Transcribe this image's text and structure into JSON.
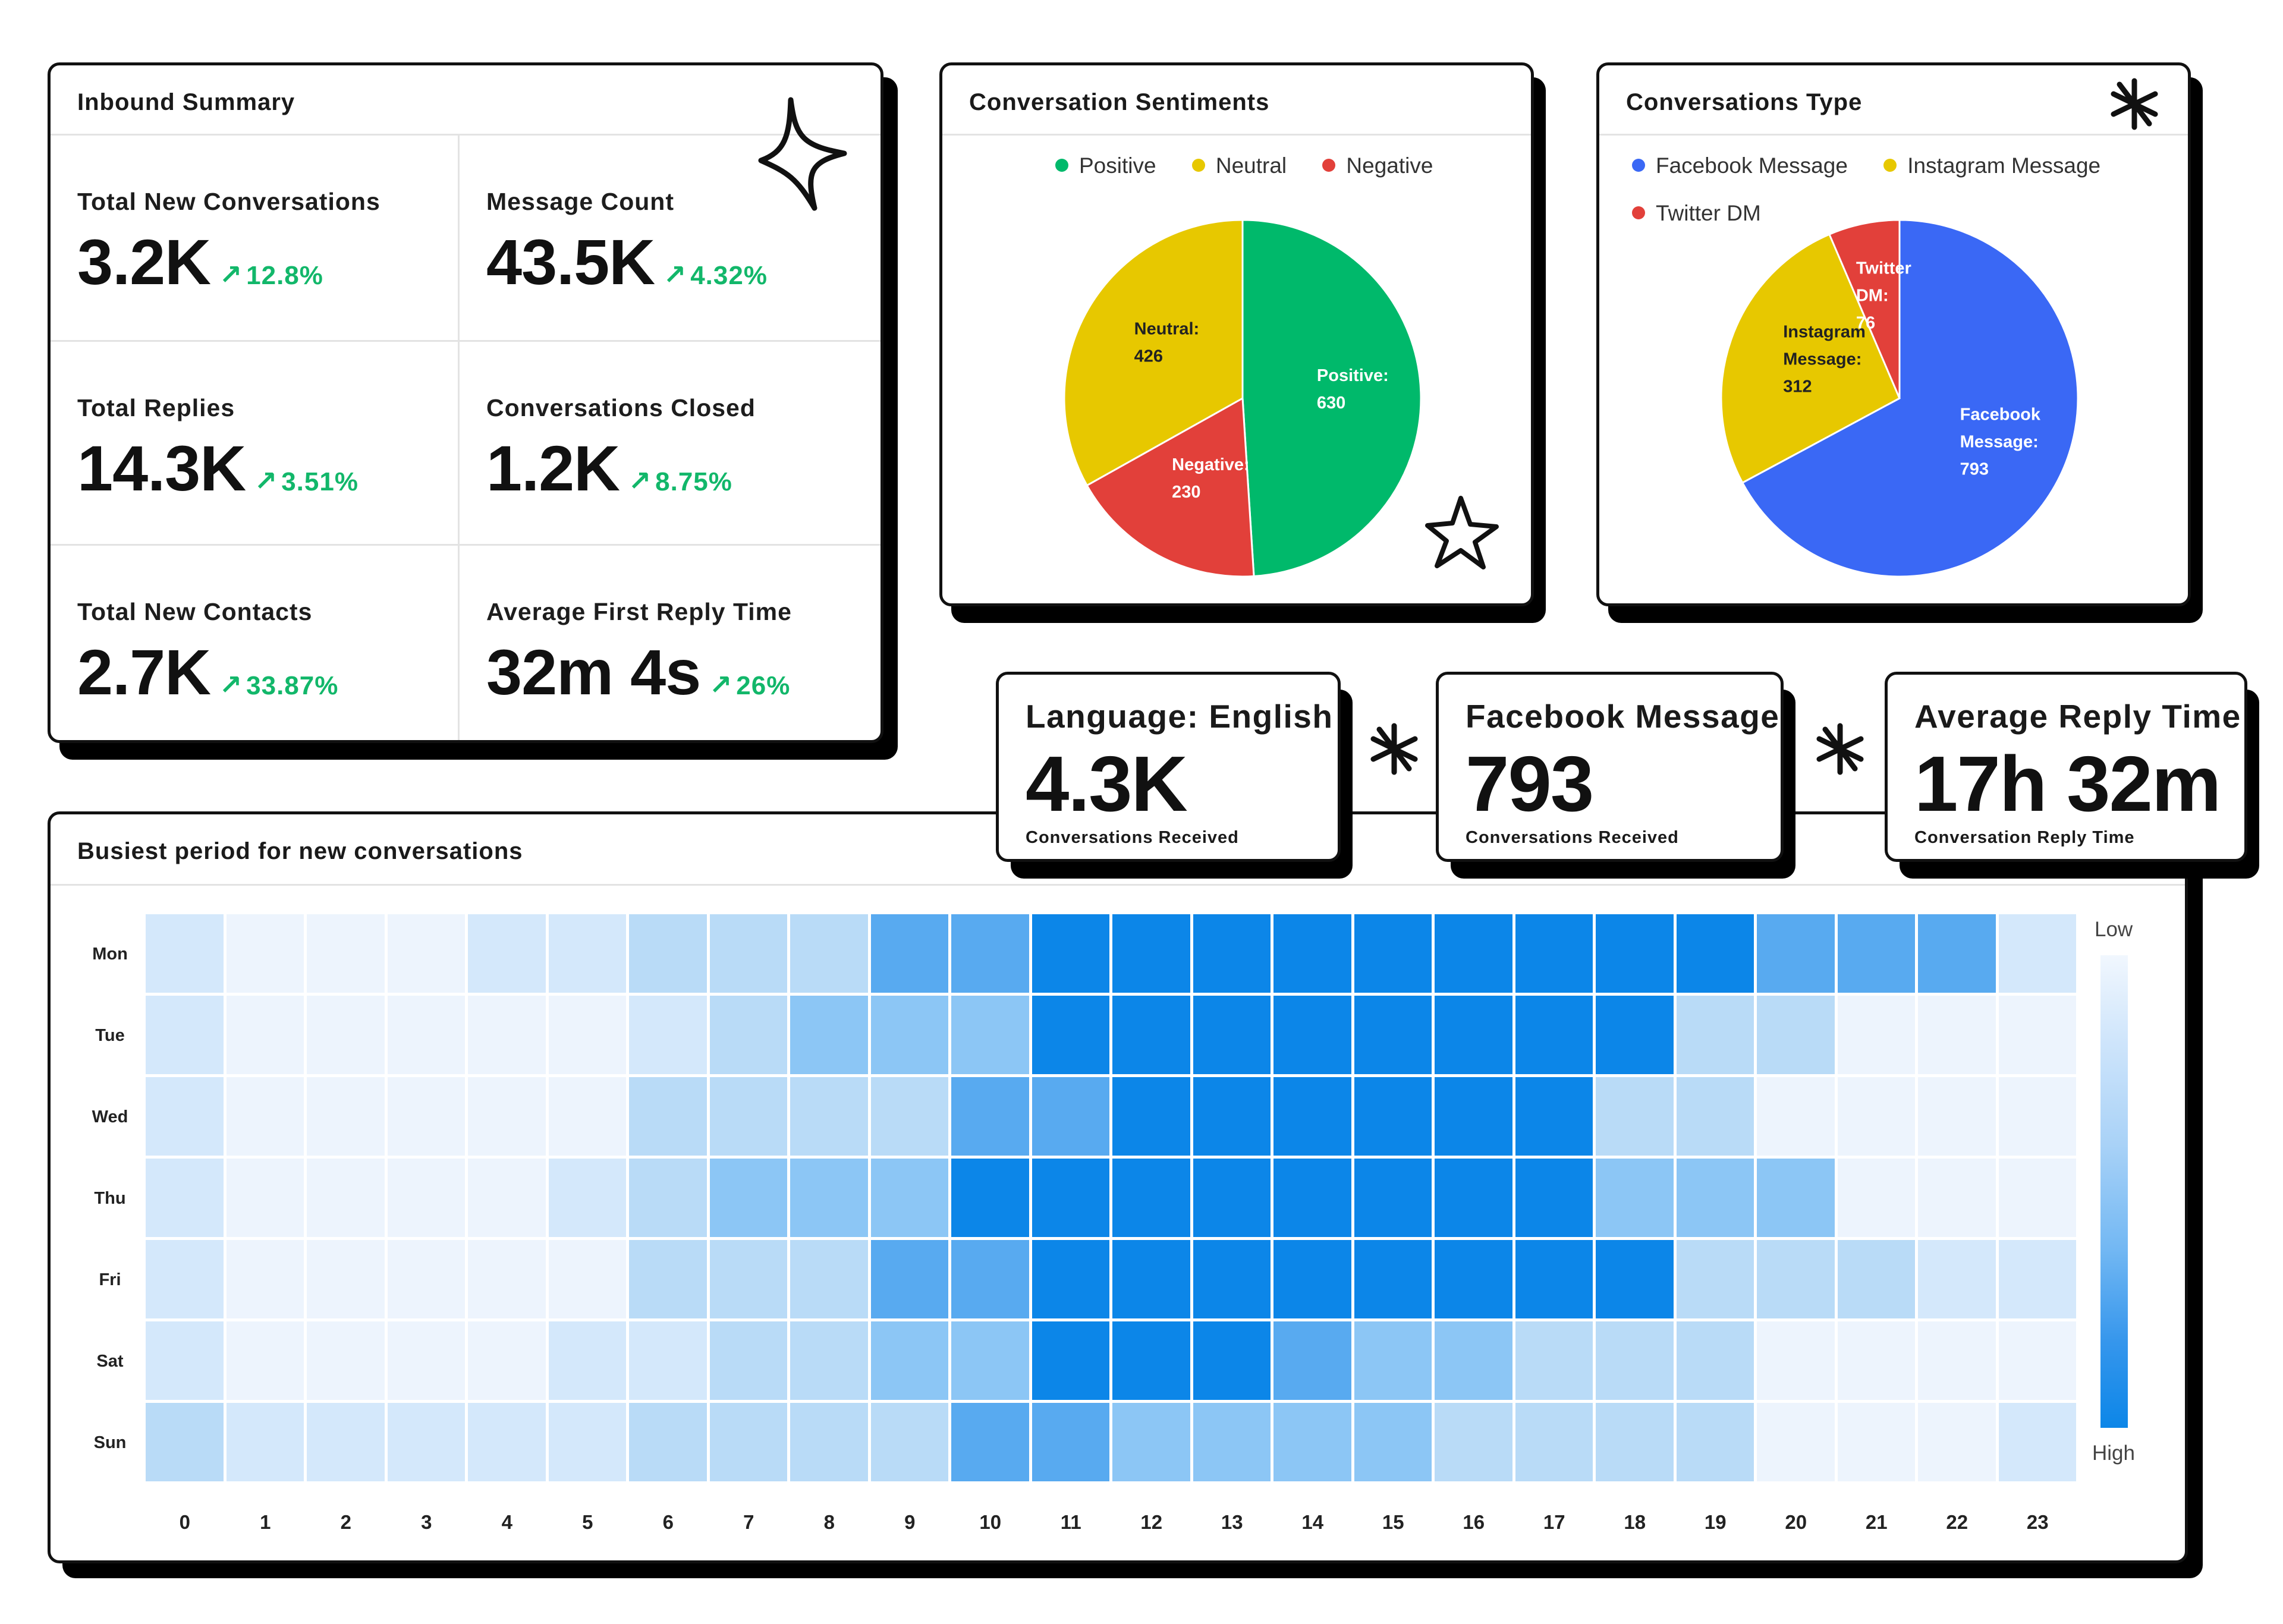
{
  "inbound_summary": {
    "title": "Inbound Summary",
    "metrics": [
      {
        "label": "Total New Conversations",
        "value": "3.2K",
        "change": "12.8%"
      },
      {
        "label": "Message Count",
        "value": "43.5K",
        "change": "4.32%"
      },
      {
        "label": "Total Replies",
        "value": "14.3K",
        "change": "3.51%"
      },
      {
        "label": "Conversations Closed",
        "value": "1.2K",
        "change": "8.75%"
      },
      {
        "label": "Total New Contacts",
        "value": "2.7K",
        "change": "33.87%"
      },
      {
        "label": "Average First Reply Time",
        "value": "32m 4s",
        "change": "26%"
      }
    ],
    "change_arrow": "↗"
  },
  "sentiments": {
    "title": "Conversation Sentiments",
    "legend": [
      {
        "label": "Positive",
        "color": "#00b96b"
      },
      {
        "label": "Neutral",
        "color": "#e7c800"
      },
      {
        "label": "Negative",
        "color": "#e2403a"
      }
    ],
    "slice_labels": [
      {
        "name": "Positive:",
        "value": "630"
      },
      {
        "name": "Neutral:",
        "value": "426"
      },
      {
        "name": "Negative:",
        "value": "230"
      }
    ]
  },
  "conv_type": {
    "title": "Conversations Type",
    "legend": [
      {
        "label": "Facebook Message",
        "color": "#3a68f5"
      },
      {
        "label": "Instagram Message",
        "color": "#e7c800"
      },
      {
        "label": "Twitter DM",
        "color": "#e2403a"
      }
    ],
    "slice_labels": [
      {
        "line1": "Facebook",
        "line2": "Message:",
        "value": "793"
      },
      {
        "line1": "Instagram",
        "line2": "Message:",
        "value": "312"
      },
      {
        "line1": "Twitter",
        "line2": "DM:",
        "value": "76"
      }
    ]
  },
  "stat_cards": [
    {
      "title": "Language: English",
      "value": "4.3K",
      "sub": "Conversations Received"
    },
    {
      "title": "Facebook Message",
      "value": "793",
      "sub": "Conversations Received"
    },
    {
      "title": "Average Reply Time",
      "value": "17h 32m",
      "sub": "Conversation Reply Time"
    }
  ],
  "heatmap": {
    "title": "Busiest period for new conversations",
    "scale_low": "Low",
    "scale_high": "High",
    "colors": [
      "#edf4fd",
      "#d4e8fb",
      "#b9dbf7",
      "#8cc6f5",
      "#58aaf0",
      "#0c86e8"
    ]
  },
  "chart_data": [
    {
      "type": "pie",
      "title": "Conversation Sentiments",
      "categories": [
        "Positive",
        "Neutral",
        "Negative"
      ],
      "values": [
        630,
        426,
        230
      ],
      "colors": [
        "#00b96b",
        "#e7c800",
        "#e2403a"
      ],
      "legend": "top"
    },
    {
      "type": "pie",
      "title": "Conversations Type",
      "categories": [
        "Facebook Message",
        "Instagram Message",
        "Twitter DM"
      ],
      "values": [
        793,
        312,
        76
      ],
      "colors": [
        "#3a68f5",
        "#e7c800",
        "#e2403a"
      ],
      "legend": "top"
    },
    {
      "type": "heatmap",
      "title": "Busiest period for new conversations",
      "x": [
        "0",
        "1",
        "2",
        "3",
        "4",
        "5",
        "6",
        "7",
        "8",
        "9",
        "10",
        "11",
        "12",
        "13",
        "14",
        "15",
        "16",
        "17",
        "18",
        "19",
        "20",
        "21",
        "22",
        "23"
      ],
      "y": [
        "Mon",
        "Tue",
        "Wed",
        "Thu",
        "Fri",
        "Sat",
        "Sun"
      ],
      "values": [
        [
          1,
          0,
          0,
          0,
          1,
          1,
          2,
          2,
          2,
          4,
          4,
          5,
          5,
          5,
          5,
          5,
          5,
          5,
          5,
          5,
          4,
          4,
          4,
          1
        ],
        [
          1,
          0,
          0,
          0,
          0,
          0,
          1,
          2,
          3,
          3,
          3,
          5,
          5,
          5,
          5,
          5,
          5,
          5,
          5,
          2,
          2,
          0,
          0,
          0
        ],
        [
          1,
          0,
          0,
          0,
          0,
          0,
          2,
          2,
          2,
          2,
          4,
          4,
          5,
          5,
          5,
          5,
          5,
          5,
          2,
          2,
          0,
          0,
          0,
          0
        ],
        [
          1,
          0,
          0,
          0,
          0,
          1,
          2,
          3,
          3,
          3,
          5,
          5,
          5,
          5,
          5,
          5,
          5,
          5,
          3,
          3,
          3,
          0,
          0,
          0
        ],
        [
          1,
          0,
          0,
          0,
          0,
          0,
          2,
          2,
          2,
          4,
          4,
          5,
          5,
          5,
          5,
          5,
          5,
          5,
          5,
          2,
          2,
          2,
          1,
          1
        ],
        [
          1,
          0,
          0,
          0,
          0,
          1,
          1,
          2,
          2,
          3,
          3,
          5,
          5,
          5,
          4,
          3,
          3,
          2,
          2,
          2,
          0,
          0,
          0,
          0
        ],
        [
          2,
          1,
          1,
          1,
          1,
          1,
          2,
          2,
          2,
          2,
          4,
          4,
          3,
          3,
          3,
          3,
          2,
          2,
          2,
          2,
          0,
          0,
          0,
          1
        ]
      ],
      "scale": [
        "Low",
        "High"
      ],
      "levels": 6
    }
  ]
}
